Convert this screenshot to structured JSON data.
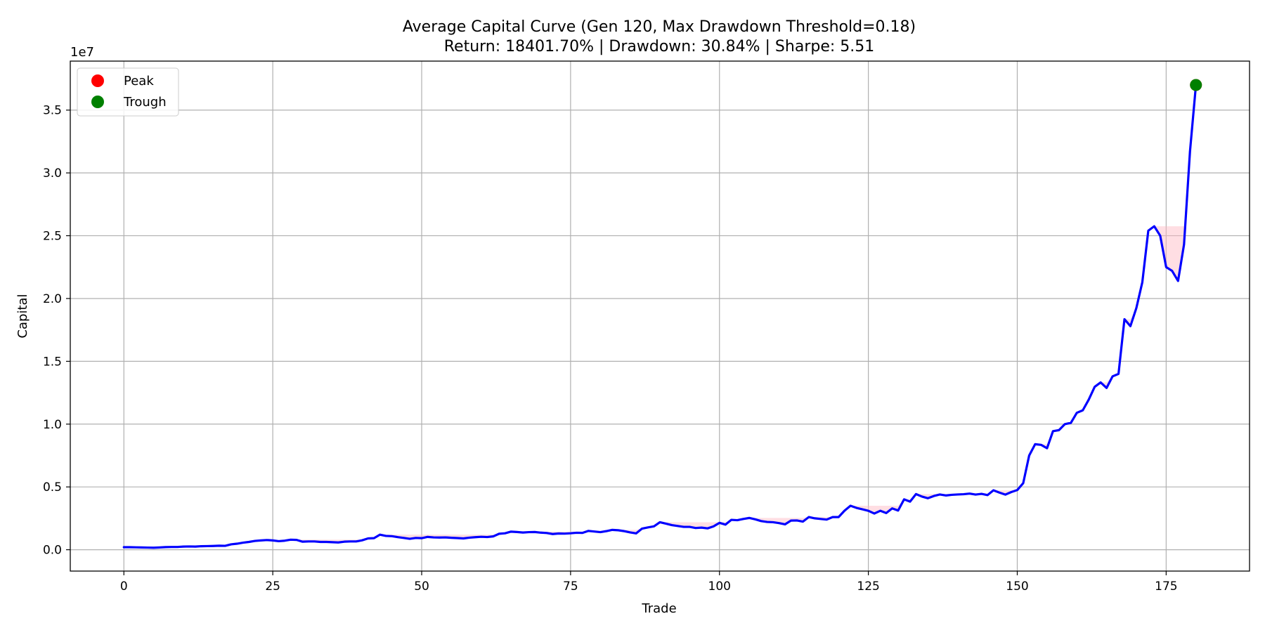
{
  "chart_data": {
    "type": "line",
    "title": "Average Capital Curve (Gen 120, Max Drawdown Threshold=0.18)",
    "subtitle": "Return: 18401.70% | Drawdown: 30.84% | Sharpe: 5.51",
    "xlabel": "Trade",
    "ylabel": "Capital",
    "y_scale_label": "1e7",
    "xlim": [
      -9,
      189
    ],
    "ylim": [
      -1700000,
      38900000
    ],
    "x_ticks": [
      0,
      25,
      50,
      75,
      100,
      125,
      150,
      175
    ],
    "x_tick_labels": [
      "0",
      "25",
      "50",
      "75",
      "100",
      "125",
      "150",
      "175"
    ],
    "y_ticks": [
      0,
      5000000,
      10000000,
      15000000,
      20000000,
      25000000,
      30000000,
      35000000
    ],
    "y_tick_labels": [
      "0.0",
      "0.5",
      "1.0",
      "1.5",
      "2.0",
      "2.5",
      "3.0",
      "3.5"
    ],
    "grid": true,
    "legend_position": "top-left",
    "series": [
      {
        "color": "#0000ff",
        "x": [
          0,
          1,
          2,
          3,
          4,
          5,
          6,
          7,
          8,
          9,
          10,
          11,
          12,
          13,
          14,
          15,
          16,
          17,
          18,
          19,
          20,
          21,
          22,
          23,
          24,
          25,
          26,
          27,
          28,
          29,
          30,
          31,
          32,
          33,
          34,
          35,
          36,
          37,
          38,
          39,
          40,
          41,
          42,
          43,
          44,
          45,
          46,
          47,
          48,
          49,
          50,
          51,
          52,
          53,
          54,
          55,
          56,
          57,
          58,
          59,
          60,
          61,
          62,
          63,
          64,
          65,
          66,
          67,
          68,
          69,
          70,
          71,
          72,
          73,
          74,
          75,
          76,
          77,
          78,
          79,
          80,
          81,
          82,
          83,
          84,
          85,
          86,
          87,
          88,
          89,
          90,
          91,
          92,
          93,
          94,
          95,
          96,
          97,
          98,
          99,
          100,
          101,
          102,
          103,
          104,
          105,
          106,
          107,
          108,
          109,
          110,
          111,
          112,
          113,
          114,
          115,
          116,
          117,
          118,
          119,
          120,
          121,
          122,
          123,
          124,
          125,
          126,
          127,
          128,
          129,
          130,
          131,
          132,
          133,
          134,
          135,
          136,
          137,
          138,
          139,
          140,
          141,
          142,
          143,
          144,
          145,
          146,
          147,
          148,
          149,
          150,
          151,
          152,
          153,
          154,
          155,
          156,
          157,
          158,
          159,
          160,
          161,
          162,
          163,
          164,
          165,
          166,
          167,
          168,
          169,
          170,
          171,
          172,
          173,
          174,
          175,
          176,
          177,
          178,
          179,
          180
        ],
        "y": [
          200000,
          200000,
          190000,
          180000,
          170000,
          160000,
          180000,
          210000,
          220000,
          220000,
          250000,
          260000,
          250000,
          280000,
          290000,
          300000,
          320000,
          310000,
          430000,
          480000,
          560000,
          620000,
          700000,
          740000,
          770000,
          740000,
          680000,
          720000,
          800000,
          780000,
          640000,
          660000,
          660000,
          620000,
          620000,
          600000,
          580000,
          640000,
          660000,
          660000,
          750000,
          900000,
          920000,
          1200000,
          1100000,
          1080000,
          1000000,
          940000,
          870000,
          940000,
          920000,
          1020000,
          980000,
          970000,
          980000,
          950000,
          930000,
          900000,
          960000,
          1000000,
          1030000,
          1010000,
          1060000,
          1270000,
          1310000,
          1440000,
          1410000,
          1370000,
          1400000,
          1410000,
          1360000,
          1330000,
          1250000,
          1290000,
          1280000,
          1310000,
          1350000,
          1340000,
          1500000,
          1450000,
          1400000,
          1480000,
          1580000,
          1550000,
          1480000,
          1380000,
          1300000,
          1680000,
          1780000,
          1860000,
          2190000,
          2080000,
          1960000,
          1890000,
          1820000,
          1820000,
          1730000,
          1760000,
          1700000,
          1860000,
          2140000,
          2000000,
          2380000,
          2350000,
          2450000,
          2530000,
          2420000,
          2280000,
          2210000,
          2190000,
          2120000,
          2020000,
          2320000,
          2330000,
          2240000,
          2600000,
          2500000,
          2450000,
          2400000,
          2600000,
          2600000,
          3110000,
          3500000,
          3330000,
          3220000,
          3100000,
          2880000,
          3100000,
          2920000,
          3290000,
          3120000,
          4010000,
          3830000,
          4430000,
          4230000,
          4100000,
          4280000,
          4400000,
          4320000,
          4370000,
          4400000,
          4420000,
          4470000,
          4390000,
          4450000,
          4350000,
          4730000,
          4550000,
          4390000,
          4590000,
          4750000,
          5300000,
          7500000,
          8400000,
          8350000,
          8080000,
          9440000,
          9520000,
          10000000,
          10100000,
          10900000,
          11100000,
          11950000,
          12970000,
          13320000,
          12880000,
          13800000,
          14000000,
          18350000,
          17800000,
          19250000,
          21300000,
          25400000,
          25750000,
          25000000,
          22500000,
          22200000,
          21400000,
          24300000,
          31700000,
          37000000
        ]
      }
    ],
    "drawdown_fill_color": "#ffb6c1",
    "markers": [
      {
        "label": "Peak",
        "color": "#ff0000",
        "x": 180,
        "y": 37000000
      },
      {
        "label": "Trough",
        "color": "#008000",
        "x": 180,
        "y": 37000000
      }
    ]
  }
}
